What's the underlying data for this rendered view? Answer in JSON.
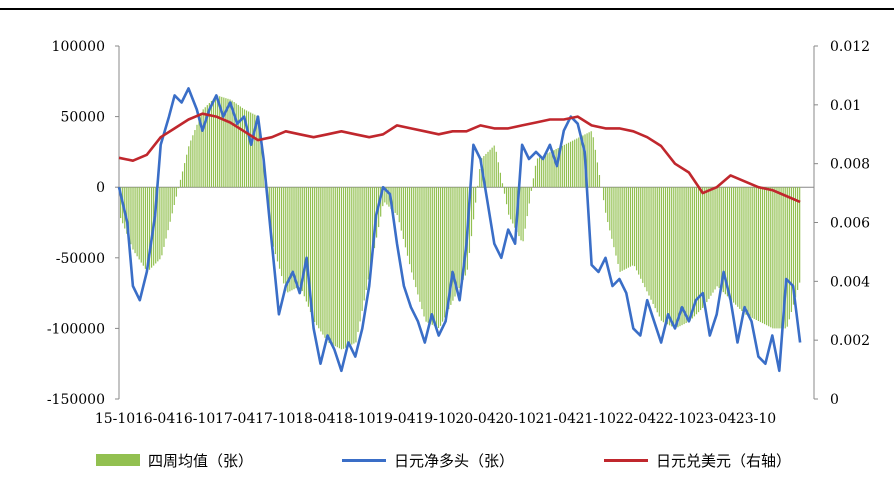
{
  "chart_data": {
    "type": "bar+line",
    "x_labels": [
      "15-10",
      "16-04",
      "16-10",
      "17-04",
      "17-10",
      "18-04",
      "18-10",
      "19-04",
      "19-10",
      "20-04",
      "20-10",
      "21-04",
      "21-10",
      "22-04",
      "22-10",
      "23-04",
      "23-10"
    ],
    "y_left": {
      "ticks": [
        "100000",
        "50000",
        "0",
        "-50000",
        "-100000",
        "-150000"
      ],
      "range": [
        -150000,
        100000
      ]
    },
    "y_right": {
      "ticks": [
        "0.012",
        "0.01",
        "0.008",
        "0.006",
        "0.004",
        "0.002",
        "0"
      ],
      "range": [
        0,
        0.012
      ]
    },
    "legend_position": "bottom",
    "series": [
      {
        "name": "四周均值（张）",
        "type": "bar",
        "axis": "left",
        "color": "#92C050",
        "values": [
          [
            0,
            -20000
          ],
          [
            1,
            -45000
          ],
          [
            2,
            -60000
          ],
          [
            3,
            -50000
          ],
          [
            4,
            -10000
          ],
          [
            5,
            30000
          ],
          [
            6,
            55000
          ],
          [
            7,
            65000
          ],
          [
            8,
            62000
          ],
          [
            9,
            55000
          ],
          [
            10,
            50000
          ],
          [
            11,
            -40000
          ],
          [
            12,
            -75000
          ],
          [
            13,
            -70000
          ],
          [
            14,
            -95000
          ],
          [
            15,
            -110000
          ],
          [
            16,
            -115000
          ],
          [
            17,
            -110000
          ],
          [
            18,
            -60000
          ],
          [
            19,
            -10000
          ],
          [
            20,
            -20000
          ],
          [
            21,
            -60000
          ],
          [
            22,
            -95000
          ],
          [
            23,
            -100000
          ],
          [
            24,
            -80000
          ],
          [
            25,
            -60000
          ],
          [
            26,
            20000
          ],
          [
            27,
            30000
          ],
          [
            28,
            -20000
          ],
          [
            29,
            -40000
          ],
          [
            30,
            20000
          ],
          [
            31,
            25000
          ],
          [
            32,
            30000
          ],
          [
            33,
            35000
          ],
          [
            34,
            40000
          ],
          [
            35,
            -20000
          ],
          [
            36,
            -60000
          ],
          [
            37,
            -55000
          ],
          [
            38,
            -75000
          ],
          [
            39,
            -95000
          ],
          [
            40,
            -100000
          ],
          [
            41,
            -95000
          ],
          [
            42,
            -85000
          ],
          [
            43,
            -70000
          ],
          [
            44,
            -80000
          ],
          [
            45,
            -90000
          ],
          [
            46,
            -95000
          ],
          [
            47,
            -100000
          ],
          [
            48,
            -100000
          ],
          [
            49,
            -65000
          ]
        ]
      },
      {
        "name": "日元净多头（张）",
        "type": "line",
        "axis": "left",
        "color": "#3A6EC7",
        "values": [
          [
            0,
            0
          ],
          [
            0.6,
            -25000
          ],
          [
            1,
            -70000
          ],
          [
            1.5,
            -80000
          ],
          [
            2,
            -60000
          ],
          [
            2.6,
            -20000
          ],
          [
            3,
            30000
          ],
          [
            3.6,
            50000
          ],
          [
            4,
            65000
          ],
          [
            4.5,
            60000
          ],
          [
            5,
            70000
          ],
          [
            5.6,
            55000
          ],
          [
            6,
            40000
          ],
          [
            6.5,
            55000
          ],
          [
            7,
            65000
          ],
          [
            7.5,
            50000
          ],
          [
            8,
            60000
          ],
          [
            8.5,
            45000
          ],
          [
            9,
            50000
          ],
          [
            9.5,
            30000
          ],
          [
            10,
            50000
          ],
          [
            10.4,
            20000
          ],
          [
            11,
            -40000
          ],
          [
            11.5,
            -90000
          ],
          [
            12,
            -70000
          ],
          [
            12.5,
            -60000
          ],
          [
            13,
            -75000
          ],
          [
            13.5,
            -50000
          ],
          [
            14,
            -100000
          ],
          [
            14.5,
            -125000
          ],
          [
            15,
            -105000
          ],
          [
            15.5,
            -115000
          ],
          [
            16,
            -130000
          ],
          [
            16.5,
            -110000
          ],
          [
            17,
            -120000
          ],
          [
            17.5,
            -100000
          ],
          [
            18,
            -70000
          ],
          [
            18.5,
            -20000
          ],
          [
            19,
            0
          ],
          [
            19.5,
            -5000
          ],
          [
            20,
            -40000
          ],
          [
            20.5,
            -70000
          ],
          [
            21,
            -85000
          ],
          [
            21.5,
            -95000
          ],
          [
            22,
            -110000
          ],
          [
            22.5,
            -90000
          ],
          [
            23,
            -105000
          ],
          [
            23.5,
            -95000
          ],
          [
            24,
            -60000
          ],
          [
            24.5,
            -80000
          ],
          [
            25,
            -40000
          ],
          [
            25.5,
            30000
          ],
          [
            26,
            20000
          ],
          [
            26.5,
            -10000
          ],
          [
            27,
            -40000
          ],
          [
            27.5,
            -50000
          ],
          [
            28,
            -30000
          ],
          [
            28.5,
            -40000
          ],
          [
            29,
            30000
          ],
          [
            29.5,
            20000
          ],
          [
            30,
            25000
          ],
          [
            30.5,
            20000
          ],
          [
            31,
            30000
          ],
          [
            31.5,
            15000
          ],
          [
            32,
            40000
          ],
          [
            32.5,
            50000
          ],
          [
            33,
            45000
          ],
          [
            33.5,
            25000
          ],
          [
            34,
            -55000
          ],
          [
            34.5,
            -60000
          ],
          [
            35,
            -50000
          ],
          [
            35.5,
            -70000
          ],
          [
            36,
            -65000
          ],
          [
            36.5,
            -75000
          ],
          [
            37,
            -100000
          ],
          [
            37.5,
            -105000
          ],
          [
            38,
            -80000
          ],
          [
            38.5,
            -95000
          ],
          [
            39,
            -110000
          ],
          [
            39.5,
            -90000
          ],
          [
            40,
            -100000
          ],
          [
            40.5,
            -85000
          ],
          [
            41,
            -95000
          ],
          [
            41.5,
            -80000
          ],
          [
            42,
            -75000
          ],
          [
            42.5,
            -105000
          ],
          [
            43,
            -90000
          ],
          [
            43.5,
            -60000
          ],
          [
            44,
            -80000
          ],
          [
            44.5,
            -110000
          ],
          [
            45,
            -85000
          ],
          [
            45.5,
            -95000
          ],
          [
            46,
            -120000
          ],
          [
            46.5,
            -125000
          ],
          [
            47,
            -105000
          ],
          [
            47.5,
            -130000
          ],
          [
            48,
            -65000
          ],
          [
            48.5,
            -70000
          ],
          [
            49,
            -110000
          ]
        ]
      },
      {
        "name": "日元兑美元（右轴）",
        "type": "line",
        "axis": "right",
        "color": "#C0272D",
        "values": [
          [
            0,
            0.0082
          ],
          [
            1,
            0.0081
          ],
          [
            2,
            0.0083
          ],
          [
            3,
            0.0089
          ],
          [
            4,
            0.0092
          ],
          [
            5,
            0.0095
          ],
          [
            6,
            0.0097
          ],
          [
            7,
            0.0096
          ],
          [
            8,
            0.0094
          ],
          [
            9,
            0.0091
          ],
          [
            10,
            0.0088
          ],
          [
            11,
            0.0089
          ],
          [
            12,
            0.0091
          ],
          [
            13,
            0.009
          ],
          [
            14,
            0.0089
          ],
          [
            15,
            0.009
          ],
          [
            16,
            0.0091
          ],
          [
            17,
            0.009
          ],
          [
            18,
            0.0089
          ],
          [
            19,
            0.009
          ],
          [
            20,
            0.0093
          ],
          [
            21,
            0.0092
          ],
          [
            22,
            0.0091
          ],
          [
            23,
            0.009
          ],
          [
            24,
            0.0091
          ],
          [
            25,
            0.0091
          ],
          [
            26,
            0.0093
          ],
          [
            27,
            0.0092
          ],
          [
            28,
            0.0092
          ],
          [
            29,
            0.0093
          ],
          [
            30,
            0.0094
          ],
          [
            31,
            0.0095
          ],
          [
            32,
            0.0095
          ],
          [
            33,
            0.0096
          ],
          [
            34,
            0.0093
          ],
          [
            35,
            0.0092
          ],
          [
            36,
            0.0092
          ],
          [
            37,
            0.0091
          ],
          [
            38,
            0.0089
          ],
          [
            39,
            0.0086
          ],
          [
            40,
            0.008
          ],
          [
            41,
            0.0077
          ],
          [
            42,
            0.007
          ],
          [
            43,
            0.0072
          ],
          [
            44,
            0.0076
          ],
          [
            45,
            0.0074
          ],
          [
            46,
            0.0072
          ],
          [
            47,
            0.0071
          ],
          [
            48,
            0.0069
          ],
          [
            49,
            0.0067
          ]
        ]
      }
    ]
  },
  "legend": {
    "bar_label": "四周均值（张）",
    "blue_label": "日元净多头（张）",
    "red_label": "日元兑美元（右轴）",
    "bar_color": "#92C050",
    "blue_color": "#3A6EC7",
    "red_color": "#C0272D"
  }
}
